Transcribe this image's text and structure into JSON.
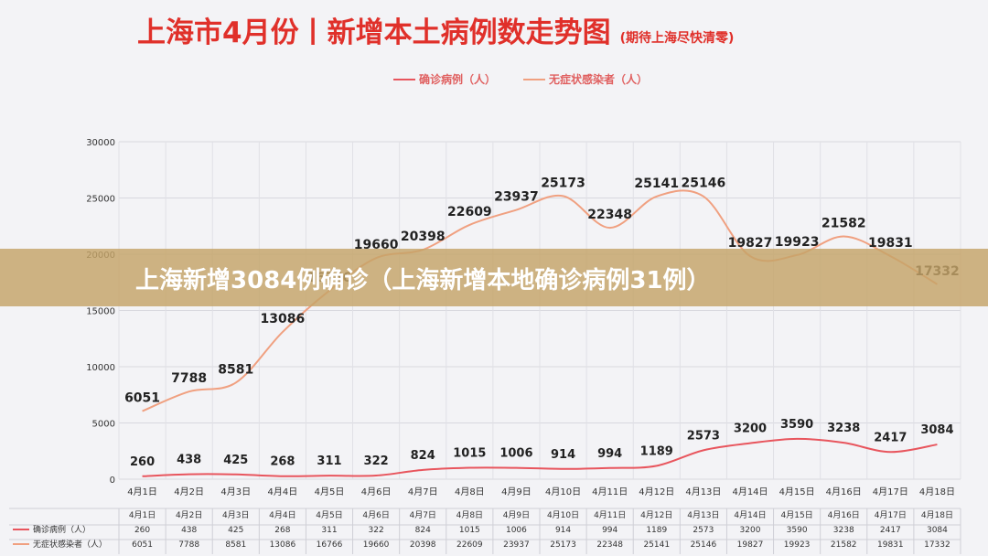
{
  "header": {
    "title": "上海市4月份丨新增本土病例数走势图",
    "subtitle": "(期待上海尽快清零)"
  },
  "banner": {
    "text": "上海新增3084例确诊（上海新增本地确诊病例31例）"
  },
  "table": {
    "row_labels": [
      "确诊病例（人）",
      "无症状感染者（人）"
    ]
  },
  "colors": {
    "title": "#e0302a",
    "confirmed_line": "#e8555d",
    "asymptomatic_line": "#f0a080",
    "banner_bg": "#c4a468",
    "background": "#f3f3f6"
  },
  "chart_data": {
    "type": "line",
    "categories": [
      "4月1日",
      "4月2日",
      "4月3日",
      "4月4日",
      "4月5日",
      "4月6日",
      "4月7日",
      "4月8日",
      "4月9日",
      "4月10日",
      "4月11日",
      "4月12日",
      "4月13日",
      "4月14日",
      "4月15日",
      "4月16日",
      "4月17日",
      "4月18日"
    ],
    "series": [
      {
        "name": "确诊病例（人）",
        "values": [
          260,
          438,
          425,
          268,
          311,
          322,
          824,
          1015,
          1006,
          914,
          994,
          1189,
          2573,
          3200,
          3590,
          3238,
          2417,
          3084
        ]
      },
      {
        "name": "无症状感染者（人）",
        "values": [
          6051,
          7788,
          8581,
          13086,
          16766,
          19660,
          20398,
          22609,
          23937,
          25173,
          22348,
          25141,
          25146,
          19827,
          19923,
          21582,
          19831,
          17332
        ]
      }
    ],
    "ylim": [
      0,
      30000
    ],
    "yticks": [
      0,
      5000,
      10000,
      15000,
      20000,
      25000,
      30000
    ],
    "grid": true,
    "legend_position": "top-center"
  }
}
